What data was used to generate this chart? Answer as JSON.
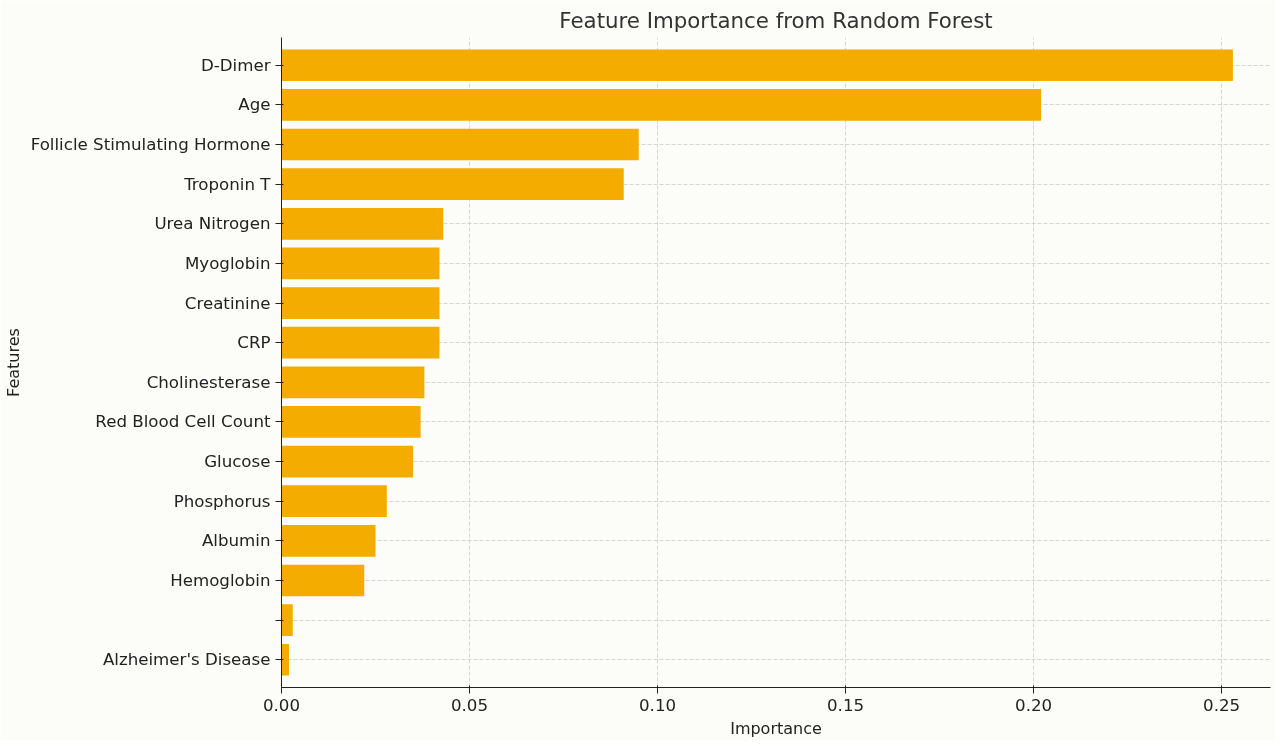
{
  "chart_data": {
    "type": "bar",
    "orientation": "horizontal",
    "title": "Feature Importance from Random Forest",
    "xlabel": "Importance",
    "ylabel": "Features",
    "categories": [
      "D-Dimer",
      "Age",
      "Follicle Stimulating Hormone",
      "Troponin T",
      "Urea Nitrogen",
      "Myoglobin",
      "Creatinine",
      "CRP",
      "Cholinesterase",
      "Red Blood Cell Count",
      "Glucose",
      "Phosphorus",
      "Albumin",
      "Hemoglobin",
      null,
      "Alzheimer's Disease"
    ],
    "values": [
      0.253,
      0.202,
      0.095,
      0.091,
      0.043,
      0.042,
      0.042,
      0.042,
      0.038,
      0.037,
      0.035,
      0.028,
      0.025,
      0.022,
      0.003,
      0.002
    ],
    "color": "#f5ac00",
    "xlim": [
      0,
      0.263
    ],
    "xticks": [
      {
        "value": 0,
        "label": "0.00"
      },
      0.05,
      {
        "value": 0.1,
        "label": "0.10"
      },
      0.15,
      {
        "value": 0.2,
        "label": "0.20"
      },
      0.25
    ],
    "grid": true
  }
}
